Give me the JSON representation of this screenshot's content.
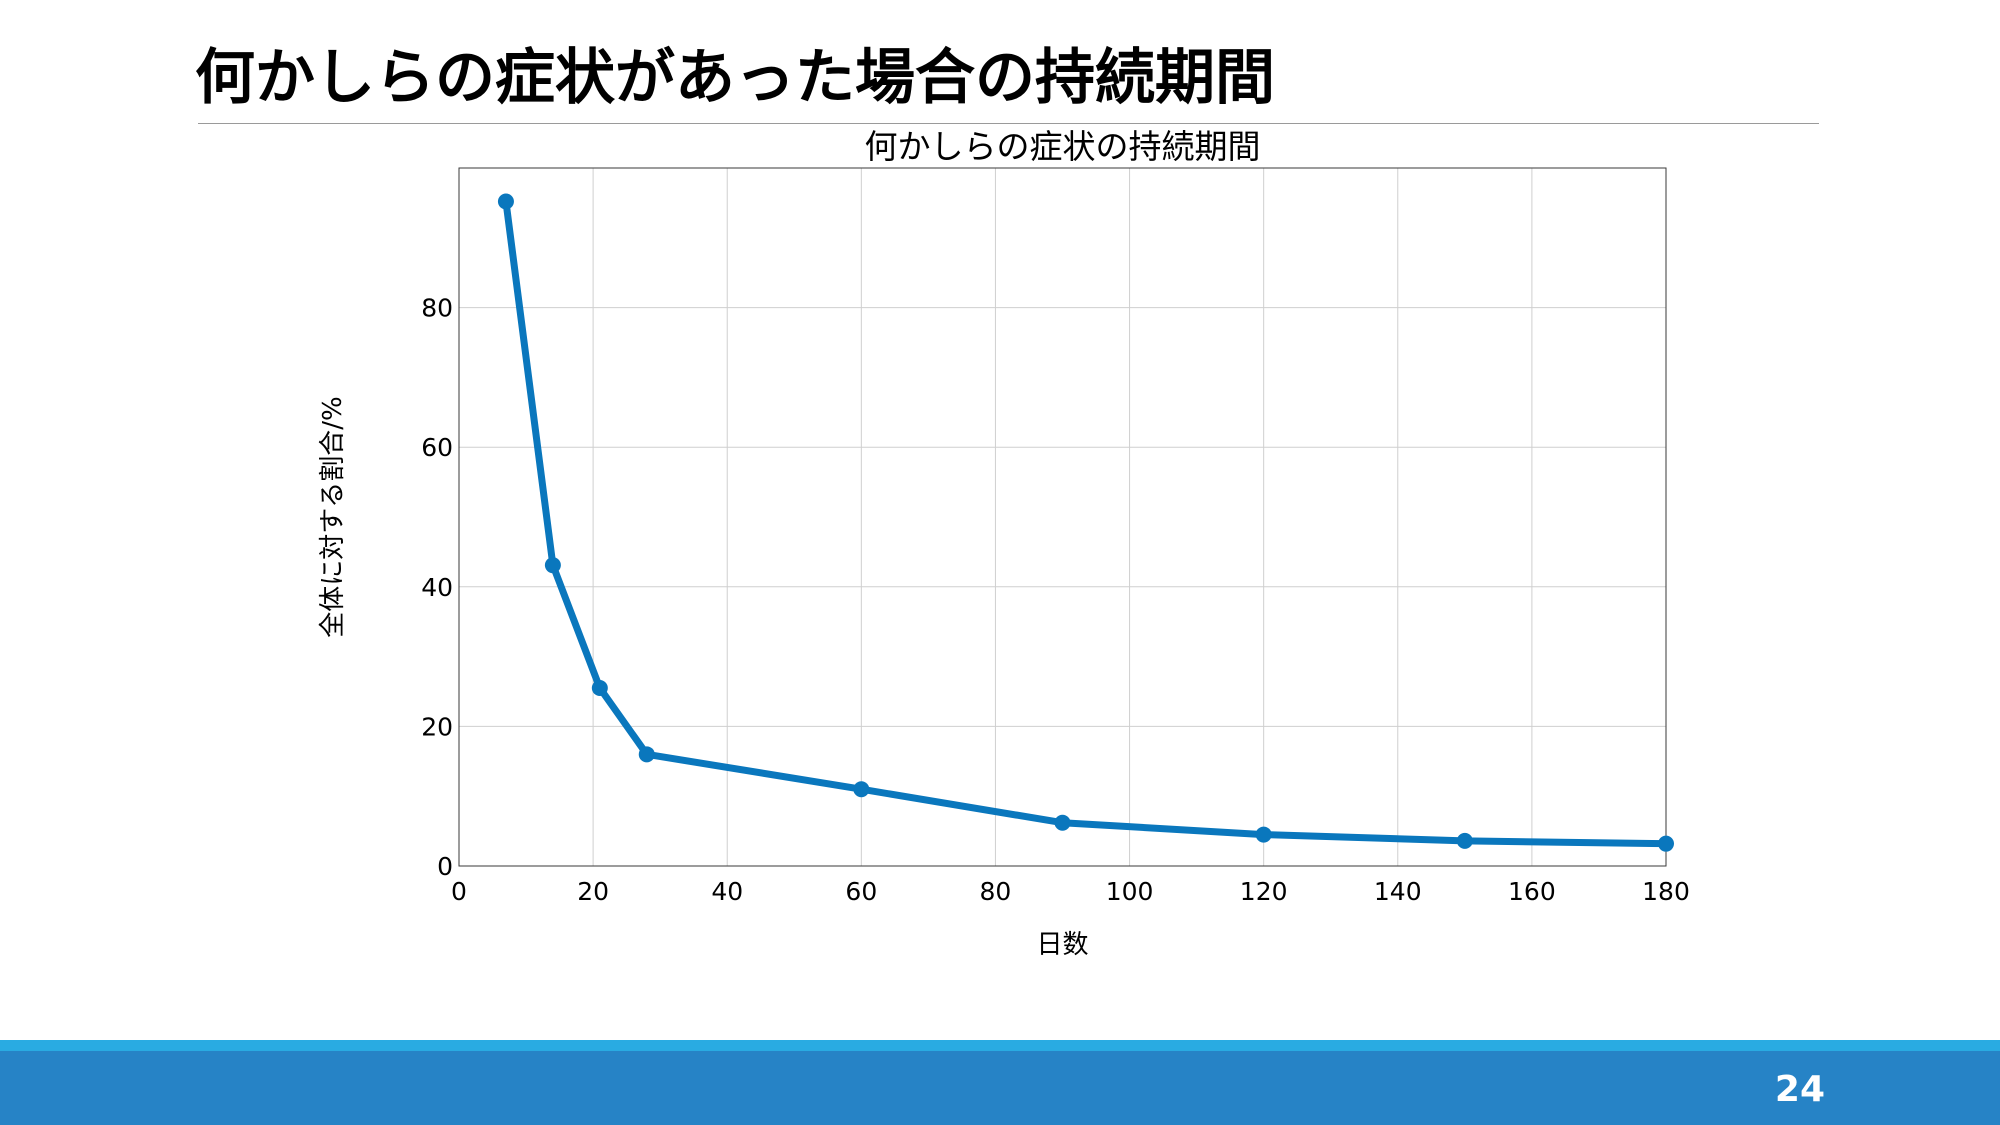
{
  "slide": {
    "title": "何かしらの症状があった場合の持続期間",
    "page_number": "24"
  },
  "colors": {
    "series": "#0a77bd",
    "footer_bar": "#2683c6",
    "footer_stripe": "#29abe2",
    "grid": "#cfcfcf"
  },
  "chart_data": {
    "type": "line",
    "title": "何かしらの症状の持続期間",
    "xlabel": "日数",
    "ylabel": "全体に対する割合/%",
    "xlim": [
      0,
      180
    ],
    "ylim": [
      0,
      100
    ],
    "xticks": [
      0,
      20,
      40,
      60,
      80,
      100,
      120,
      140,
      160,
      180
    ],
    "yticks": [
      0,
      20,
      40,
      60,
      80
    ],
    "grid": true,
    "series": [
      {
        "x": [
          7,
          14,
          21,
          28,
          60,
          90,
          120,
          150,
          180
        ],
        "y": [
          95.2,
          43.1,
          25.5,
          16.0,
          11.0,
          6.2,
          4.5,
          3.6,
          3.2
        ]
      }
    ]
  }
}
